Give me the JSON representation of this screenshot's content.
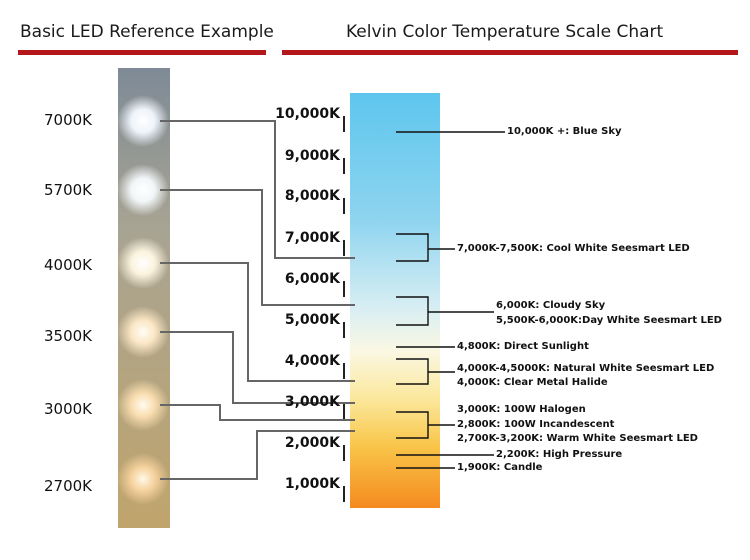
{
  "left_title": "Basic LED Reference Example",
  "right_title": "Kelvin Color Temperature Scale Chart",
  "led_labels": [
    "7000K",
    "5700K",
    "4000K",
    "3500K",
    "3000K",
    "2700K"
  ],
  "scale_labels": [
    "10,000K",
    "9,000K",
    "8,000K",
    "7,000K",
    "6,000K",
    "5,000K",
    "4,000K",
    "3,000K",
    "2,000K",
    "1,000K"
  ],
  "descriptions": {
    "blue_sky": "10,000K +: Blue Sky",
    "cool_white": "7,000K-7,500K: Cool White Seesmart LED",
    "cloudy_sky": "6,000K: Cloudy Sky",
    "day_white": "5,500K-6,000K:Day White Seesmart LED",
    "direct_sunlight": "4,800K: Direct Sunlight",
    "natural_white": "4,000K-4,5000K: Natural White Seesmart LED",
    "metal_halide": "4,000K: Clear Metal Halide",
    "halogen": "3,000K: 100W Halogen",
    "incandescent": "2,800K: 100W Incandescent",
    "warm_white": "2,700K-3,200K: Warm White Seesmart LED",
    "high_pressure": "2,200K: High Pressure",
    "candle": "1,900K: Candle"
  },
  "colors": {
    "accent_rule": "#b3161b",
    "scale_top": "#5ec6ee",
    "scale_mid": "#fbf6e2",
    "scale_bottom": "#f58a1f",
    "led_strip": "#b8a98c"
  }
}
